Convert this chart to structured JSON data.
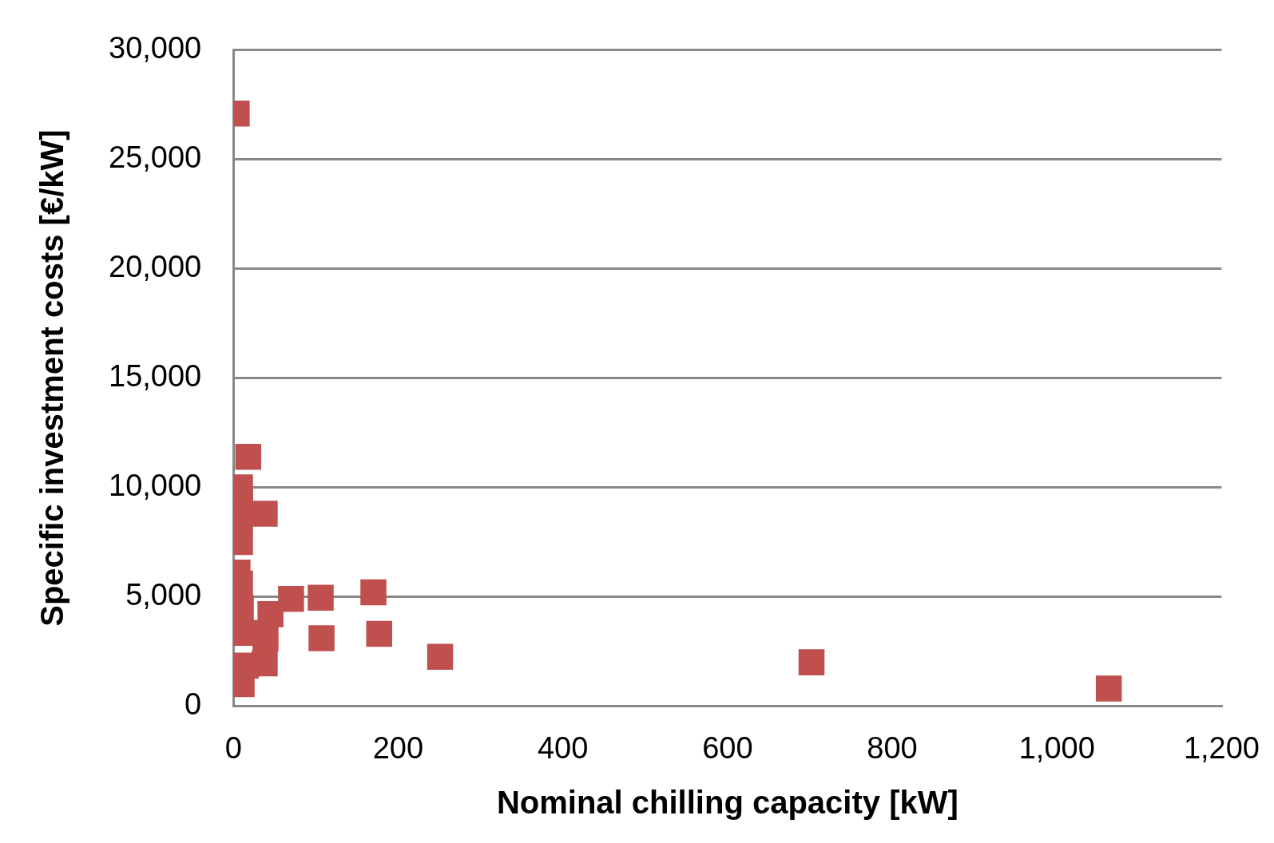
{
  "chart_data": {
    "type": "scatter",
    "xlabel": "Nominal chilling capacity [kW]",
    "ylabel": "Specific investment costs [€/kW]",
    "series": [
      {
        "color": "#c0504d",
        "x": [
          4,
          18,
          8,
          8,
          38,
          8,
          8,
          5,
          8,
          9,
          70,
          106,
          170,
          45,
          15,
          39,
          107,
          177,
          38,
          251,
          10,
          15,
          702,
          1063
        ],
        "values": [
          27100,
          11400,
          10000,
          9300,
          8800,
          8600,
          7500,
          6100,
          5600,
          4500,
          4900,
          4950,
          5200,
          4200,
          3350,
          3100,
          3100,
          3300,
          1950,
          2250,
          1000,
          1850,
          2000,
          800
        ]
      }
    ],
    "xlim": [
      0,
      1200
    ],
    "xticks": [
      0,
      200,
      400,
      600,
      800,
      {
        "value": 1000,
        "label": "1,000"
      },
      {
        "value": 1200,
        "label": "1,200"
      }
    ],
    "ylim": [
      0,
      30000
    ],
    "yticks": [
      0,
      {
        "value": 5000,
        "label": "5,000"
      },
      {
        "value": 10000,
        "label": "10,000"
      },
      {
        "value": 15000,
        "label": "15,000"
      },
      {
        "value": 20000,
        "label": "20,000"
      },
      {
        "value": 25000,
        "label": "25,000"
      },
      {
        "value": 30000,
        "label": "30,000"
      }
    ],
    "grid": "y",
    "marker": "square"
  }
}
